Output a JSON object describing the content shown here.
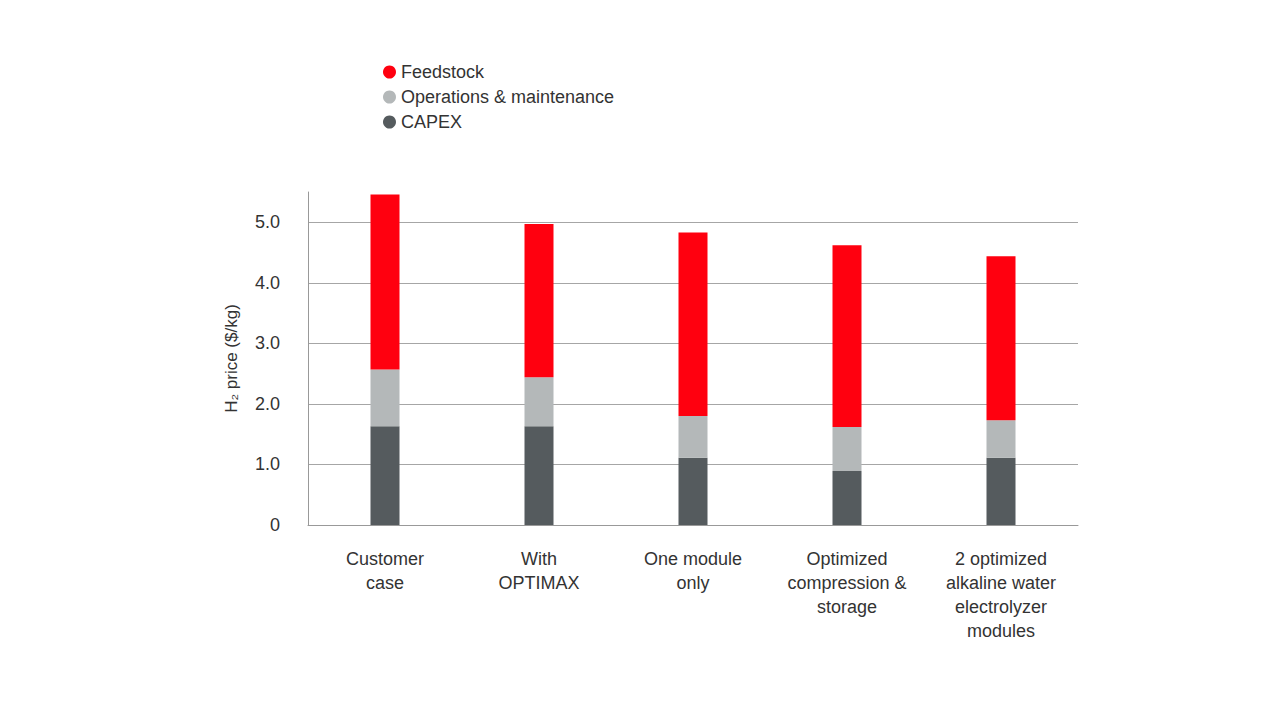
{
  "chart_data": {
    "type": "bar",
    "stacked": true,
    "grid": true,
    "legend": "top-left",
    "y_label": "H₂ price ($/kg)",
    "categories": [
      "Customer\ncase",
      "With\nOPTIMAX",
      "One module\nonly",
      "Optimized\ncompression &\nstorage",
      "2 optimized\nalkaline water\nelectrolyzer\nmodules"
    ],
    "ylim": [
      0,
      5.5
    ],
    "yticks": [
      0,
      {
        "value": 1,
        "label": "1.0"
      },
      {
        "value": 2,
        "label": "2.0"
      },
      {
        "value": 3,
        "label": "3.0"
      },
      {
        "value": 4,
        "label": "4.0"
      },
      {
        "value": 5,
        "label": "5.0"
      }
    ],
    "series": [
      {
        "name": "CAPEX",
        "color": "#555b5e",
        "values": [
          1.63,
          1.63,
          1.11,
          0.89,
          1.11
        ]
      },
      {
        "name": "Operations & maintenance",
        "color": "#b4b8b9",
        "values": [
          0.94,
          0.81,
          0.69,
          0.73,
          0.62
        ]
      },
      {
        "name": "Feedstock",
        "color": "#ff000f",
        "values": [
          2.89,
          2.53,
          3.03,
          3.0,
          2.71
        ]
      }
    ]
  }
}
